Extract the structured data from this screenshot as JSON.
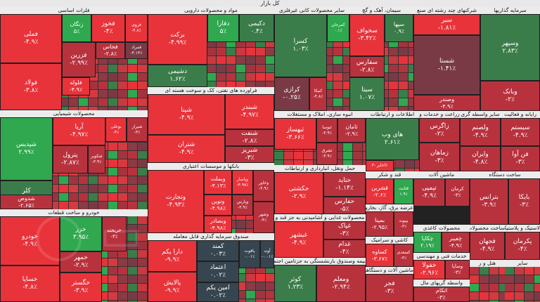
{
  "header": {
    "title": "کل بازار"
  },
  "colors": {
    "strong_pos": "#2fa84f",
    "pos": "#3a7d4a",
    "flat": "#7a3a45",
    "neg": "#b8323e",
    "strong_neg": "#e8333b",
    "dark": "#36454f"
  },
  "sectors": [
    {
      "id": "s1",
      "title": "فلزات اساسی",
      "tiles": [
        {
          "name": "فملی",
          "change": "-۴.۹٪",
          "c": "strong_neg"
        },
        {
          "name": "فولاد",
          "change": "-۳.۸٪",
          "c": "strong_neg"
        },
        {
          "name": "فوکا",
          "change": "۱.۵۵٪",
          "c": "pos"
        },
        {
          "name": "زنگان",
          "change": "۵٪",
          "c": "strong_pos"
        },
        {
          "name": "فخوز",
          "change": "-۴٪",
          "c": "strong_neg"
        },
        {
          "name": "فزرین",
          "change": "-۲.۹۹٪",
          "c": "neg"
        },
        {
          "name": "فخاس",
          "change": "-۲.۸٪",
          "c": "neg"
        },
        {
          "name": "فروی",
          "change": "-۴.۸٪",
          "c": "strong_neg"
        },
        {
          "name": "فلوله",
          "change": "-۴.۹٪",
          "c": "strong_neg"
        },
        {
          "name": "فمراد",
          "change": "-۳.۱۳٪",
          "c": "flat"
        },
        {
          "name": "فالوم",
          "change": "-۴.۹۹٪",
          "c": "neg"
        }
      ]
    },
    {
      "id": "s2",
      "title": "مواد و محصولات دارویی",
      "tiles": [
        {
          "name": "برکت",
          "change": "-۴.۹۹٪",
          "c": "strong_neg"
        },
        {
          "name": "دشیمی",
          "change": "۱.۶۲٪",
          "c": "pos"
        },
        {
          "name": "دفارا",
          "change": "۵٪",
          "c": "strong_pos"
        },
        {
          "name": "دکیمی",
          "change": "۰.۴٪",
          "c": "pos"
        }
      ]
    },
    {
      "id": "s3",
      "title": "سایر محصولات کانی غیرفلزی",
      "tiles": [
        {
          "name": "کسرا",
          "change": "۱.۰۳٪",
          "c": "pos"
        },
        {
          "name": "کمرجان",
          "change": "۰.۱٪",
          "c": "strong_pos"
        },
        {
          "name": "کرازی",
          "change": "-۰.۲۵٪",
          "c": "flat"
        },
        {
          "name": "کنیکا",
          "change": "-۴.۸٪",
          "c": "neg"
        }
      ]
    },
    {
      "id": "s4",
      "title": "سیمان، آهک و گچ",
      "tiles": [
        {
          "name": "سخواف",
          "change": "-۳.۴۲٪",
          "c": "strong_neg"
        },
        {
          "name": "سفارس",
          "change": "-۲.۸٪",
          "c": "neg"
        },
        {
          "name": "سیتا",
          "change": "۱.۰۷٪",
          "c": "pos"
        },
        {
          "name": "سپها",
          "change": "۰.۹٪",
          "c": "pos"
        }
      ]
    },
    {
      "id": "s5",
      "title": "شرکتهای چند رشته ای صنع",
      "tiles": [
        {
          "name": "سیر",
          "change": "-۱.۸۱٪",
          "c": "strong_neg"
        },
        {
          "name": "شستا",
          "change": "-۱.۴۱٪",
          "c": "flat"
        },
        {
          "name": "وصندر",
          "change": "-۴.۹٪",
          "c": "neg"
        }
      ]
    },
    {
      "id": "s6",
      "title": "سرمایه گذاریها",
      "tiles": [
        {
          "name": "وسپهر",
          "change": "۲.۸۳٪",
          "c": "pos"
        },
        {
          "name": "وبانک",
          "change": "-۲٪",
          "c": "neg"
        }
      ]
    },
    {
      "id": "s7",
      "title": "فراورده های نفتی، کک و سوخت هسته ای",
      "tiles": [
        {
          "name": "شپنا",
          "change": "-۴.۹٪",
          "c": "strong_neg"
        },
        {
          "name": "شبندر",
          "change": "-۴.۹۷٪",
          "c": "strong_neg"
        },
        {
          "name": "شتران",
          "change": "-۴.۹٪",
          "c": "strong_neg"
        },
        {
          "name": "شنفت",
          "change": "-۲.۸٪",
          "c": "neg"
        },
        {
          "name": "شبریز",
          "change": "-۳٪",
          "c": "neg"
        }
      ]
    },
    {
      "id": "s8",
      "title": "محصولات شیمیایی",
      "tiles": [
        {
          "name": "شپدیس",
          "change": "۲.۹۹٪",
          "c": "strong_pos"
        },
        {
          "name": "آریا",
          "change": "-۴.۹۷٪",
          "c": "strong_neg"
        },
        {
          "name": "پترول",
          "change": "-۲.۸۷٪",
          "c": "neg"
        },
        {
          "name": "شکویر",
          "change": "-۳.۹٪",
          "c": "neg"
        },
        {
          "name": "کلر",
          "change": "۱.۸۵٪",
          "c": "pos"
        },
        {
          "name": "شدوص",
          "change": "-۲.۶۵٪",
          "c": "neg"
        },
        {
          "name": "بوعلی",
          "change": "-۴٪",
          "c": "strong_neg"
        },
        {
          "name": "شیراز",
          "change": "-۳٪",
          "c": "neg"
        }
      ]
    },
    {
      "id": "s9",
      "title": "خودرو و ساخت قطعات",
      "tiles": [
        {
          "name": "خودرو",
          "change": "-۴.۹٪",
          "c": "strong_neg"
        },
        {
          "name": "خساپا",
          "change": "-۴.۸٪",
          "c": "strong_neg"
        },
        {
          "name": "خزر",
          "change": "۳.۹۵٪",
          "c": "strong_pos"
        },
        {
          "name": "خمهر",
          "change": "-۲.۹٪",
          "c": "neg"
        },
        {
          "name": "خریخته",
          "change": "-۳٪",
          "c": "neg"
        },
        {
          "name": "خگستر",
          "change": "-۳.۹٪",
          "c": "strong_neg"
        }
      ]
    },
    {
      "id": "s10",
      "title": "بانکها و موسسات اعتباری",
      "tiles": [
        {
          "name": "وتجارت",
          "change": "-۴.۹۳٪",
          "c": "strong_neg"
        },
        {
          "name": "وبملت",
          "change": "-۴.۱۳٪",
          "c": "strong_neg"
        },
        {
          "name": "ونوین",
          "change": "-۴.۹۸٪",
          "c": "strong_neg"
        },
        {
          "name": "وبصادر",
          "change": "-۴.۹۸٪",
          "c": "strong_neg"
        },
        {
          "name": "وپاسار",
          "change": "-۴.۹۷٪",
          "c": "strong_neg"
        },
        {
          "name": "وپارس",
          "change": "-۳.۹٪",
          "c": "neg"
        },
        {
          "name": "وخاور",
          "change": "-۴.۹٪",
          "c": "neg"
        },
        {
          "name": "وشهر",
          "change": "-۴٪",
          "c": "neg"
        }
      ]
    },
    {
      "id": "s11",
      "title": "صندوق سرمایه گذاری قابل معامله",
      "tiles": [
        {
          "name": "دارا یکم",
          "change": "-۹.۹٪",
          "c": "strong_neg"
        },
        {
          "name": "پالایش",
          "change": "-۹.۹٪",
          "c": "strong_neg"
        },
        {
          "name": "کمند",
          "change": "۰.۰۳٪",
          "c": "dark"
        },
        {
          "name": "اعتماد",
          "change": "۰.۰۲٪",
          "c": "dark"
        },
        {
          "name": "امین یکم",
          "change": "۰.۰۲٪",
          "c": "dark"
        },
        {
          "name": "یاقوت",
          "change": "۰.۰۱٪",
          "c": "dark"
        },
        {
          "name": "آوند",
          "change": "-۰.۰۱٪",
          "c": "dark"
        }
      ]
    },
    {
      "id": "s12",
      "title": "انبوه سازی، املاک و مستغلات",
      "tiles": [
        {
          "name": "ثبهساز",
          "change": "-۳.۶۶٪",
          "c": "strong_neg"
        },
        {
          "name": "ثنوسا",
          "change": "-۳.۹٪",
          "c": "neg"
        },
        {
          "name": "ثشرق",
          "change": "-۴.۹٪",
          "c": "neg"
        },
        {
          "name": "ثامان",
          "change": "-۲.۹٪",
          "c": "neg"
        }
      ]
    },
    {
      "id": "s13",
      "title": "اطلاعات و ارتباطات",
      "tiles": [
        {
          "name": "های وب",
          "change": "۲.۶۱٪",
          "c": "pos"
        },
        {
          "name": "اخابر",
          "change": "-۳٪",
          "c": "strong_neg"
        }
      ]
    },
    {
      "id": "s14",
      "title": "زراعت و خدمات و",
      "tiles": [
        {
          "name": "زاگرس",
          "change": "-۲٪",
          "c": "neg"
        },
        {
          "name": "زماهان",
          "change": "-۳٪",
          "c": "neg"
        }
      ]
    },
    {
      "id": "s15",
      "title": "سایر واسطه گری",
      "tiles": [
        {
          "name": "ولصنم",
          "change": "-۴.۹٪",
          "c": "neg"
        },
        {
          "name": "وایران",
          "change": "-۴.۸٪",
          "c": "neg"
        }
      ]
    },
    {
      "id": "s16",
      "title": "رایانه و فعالیت",
      "tiles": [
        {
          "name": "سیستم",
          "change": "-۴.۹٪",
          "c": "neg"
        },
        {
          "name": "فن آوا",
          "change": "-۳٪",
          "c": "neg"
        }
      ]
    },
    {
      "id": "s17",
      "title": "حمل ونقل، انبارداری و ارتباطات",
      "tiles": [
        {
          "name": "حکشتی",
          "change": "-۲.۹٪",
          "c": "strong_neg"
        },
        {
          "name": "حتاید",
          "change": "-۱.۱۴٪",
          "c": "neg"
        },
        {
          "name": "حفارس",
          "change": "-۵٪",
          "c": "neg"
        }
      ]
    },
    {
      "id": "s18",
      "title": "محصولات غذایی و آشامیدنی به جز قند و",
      "tiles": [
        {
          "name": "غبشهر",
          "change": "-۴.۹٪",
          "c": "strong_neg"
        },
        {
          "name": "غپاک",
          "change": "-۳٪",
          "c": "neg"
        },
        {
          "name": "غدام",
          "change": "-۴٪",
          "c": "neg"
        }
      ]
    },
    {
      "id": "s19",
      "title": "قند و شکر",
      "tiles": [
        {
          "name": "قشرین",
          "change": "-۲.۶٪",
          "c": "strong_neg"
        },
        {
          "name": "قثابت",
          "change": "۱.۹٪",
          "c": "strong_pos"
        }
      ]
    },
    {
      "id": "s20",
      "title": "عرضه برق، گاز، بخاروآب",
      "tiles": [
        {
          "name": "بمپنا",
          "change": "-۲.۹۵٪",
          "c": "neg"
        },
        {
          "name": "بپیوند",
          "change": "-۳٪",
          "c": "neg"
        }
      ]
    },
    {
      "id": "s21",
      "title": "ماشین آلات",
      "tiles": [
        {
          "name": "تپمپی",
          "change": "-۴.۹٪",
          "c": "neg"
        },
        {
          "name": "کرمان",
          "change": "-۳٪",
          "c": "neg"
        }
      ]
    },
    {
      "id": "s22",
      "title": "محصولات کاغذی",
      "tiles": [
        {
          "name": "چکاپا",
          "change": "۲.۱۹٪",
          "c": "strong_pos"
        },
        {
          "name": "چفیبر",
          "change": "-۴.۹٪",
          "c": "neg"
        }
      ]
    },
    {
      "id": "s23",
      "title": "بیمه وصندوق بازنشستگی به جزتامین اجتم",
      "tiles": [
        {
          "name": "کوثر",
          "change": "۱.۲۳٪",
          "c": "pos"
        },
        {
          "name": "ومعلم",
          "change": "-۲.۹۴٪",
          "c": "neg"
        }
      ]
    },
    {
      "id": "s24",
      "title": "کاشی و سرامیک",
      "tiles": [
        {
          "name": "کساوه",
          "change": "-۳.۶۷٪",
          "c": "strong_neg"
        },
        {
          "name": "کسعدی",
          "change": "-۳٪",
          "c": "neg"
        }
      ]
    },
    {
      "id": "s25",
      "title": "ساخت دستگاه",
      "tiles": [
        {
          "name": "بترانس",
          "change": "-۳.۹٪",
          "c": "neg"
        },
        {
          "name": "بایکا",
          "change": "-۳٪",
          "c": "neg"
        }
      ]
    },
    {
      "id": "s26",
      "title": "خدمات فنی و مهندسی",
      "tiles": [
        {
          "name": "خفولا",
          "change": "-۲.۹۶٪",
          "c": "strong_neg"
        },
        {
          "name": "وساپا",
          "change": "-۳٪",
          "c": "neg"
        }
      ]
    },
    {
      "id": "s27",
      "title": "واسطه گریهای مال",
      "tiles": [
        {
          "name": "اتکام",
          "change": "-۳٪",
          "c": "neg"
        }
      ]
    },
    {
      "id": "s28",
      "title": "ساخت محصولات فلزی",
      "tiles": [
        {
          "name": "فجهان",
          "change": "-۴.۹٪",
          "c": "neg"
        }
      ]
    },
    {
      "id": "s29",
      "title": "ماشین آلات و دستگاههای",
      "tiles": [
        {
          "name": "فجر",
          "change": "-۳٪",
          "c": "neg"
        }
      ]
    },
    {
      "id": "s30",
      "title": "لاستیک و پلاستیک",
      "tiles": [
        {
          "name": "پکرمان",
          "change": "-۴٪",
          "c": "neg"
        }
      ]
    },
    {
      "id": "s31",
      "title": "هتل و ر",
      "tiles": []
    },
    {
      "id": "s32",
      "title": "سایر",
      "tiles": []
    }
  ]
}
